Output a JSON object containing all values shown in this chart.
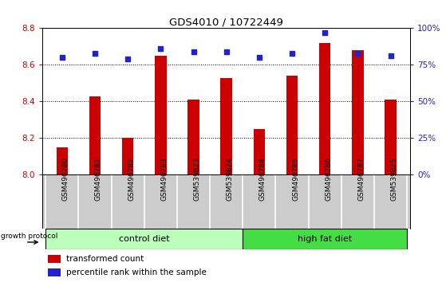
{
  "title": "GDS4010 / 10722449",
  "samples": [
    "GSM496780",
    "GSM496781",
    "GSM496782",
    "GSM496783",
    "GSM539823",
    "GSM539824",
    "GSM496784",
    "GSM496785",
    "GSM496786",
    "GSM496787",
    "GSM539825"
  ],
  "red_values": [
    8.15,
    8.43,
    8.2,
    8.65,
    8.41,
    8.53,
    8.25,
    8.54,
    8.72,
    8.68,
    8.41
  ],
  "blue_values": [
    80,
    83,
    79,
    86,
    84,
    84,
    80,
    83,
    97,
    83,
    81
  ],
  "ylim_left": [
    8.0,
    8.8
  ],
  "ylim_right": [
    0,
    100
  ],
  "yticks_left": [
    8.0,
    8.2,
    8.4,
    8.6,
    8.8
  ],
  "yticks_right": [
    0,
    25,
    50,
    75,
    100
  ],
  "ytick_labels_right": [
    "0%",
    "25%",
    "50%",
    "75%",
    "100%"
  ],
  "bar_color": "#cc0000",
  "dot_color": "#2222cc",
  "control_diet_count": 6,
  "high_fat_diet_count": 5,
  "control_color": "#bbffbb",
  "high_fat_color": "#44dd44",
  "label_color_left": "#cc0000",
  "label_color_right": "#2222cc",
  "grid_color": "#000000",
  "bg_color": "#ffffff",
  "plot_bg": "#ffffff",
  "tick_bg": "#cccccc"
}
